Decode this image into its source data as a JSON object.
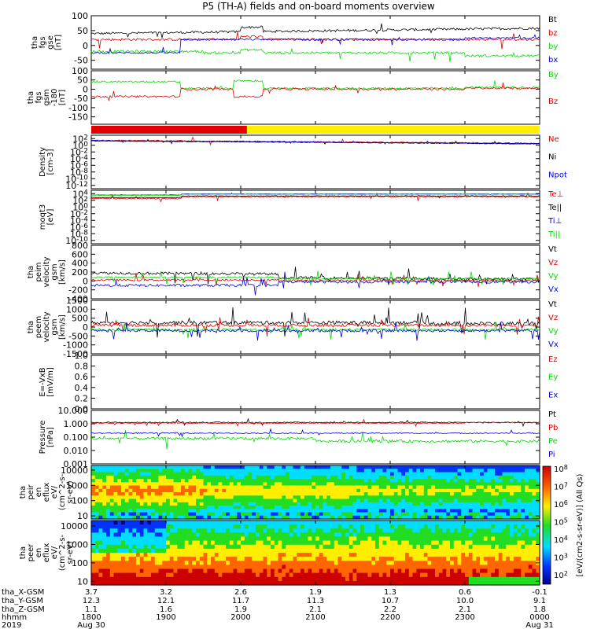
{
  "title": "P5 (TH-A) fields and on-board moments overview",
  "colors": {
    "black": "#000000",
    "red": "#e00000",
    "green": "#00dd00",
    "blue": "#0000e0",
    "yellow": "#ffee00"
  },
  "bottom_axis": {
    "labels": [
      "tha_X-GSM",
      "tha_Y-GSM",
      "tha_Z-GSM",
      "hhmm",
      "2019"
    ],
    "ticks": [
      {
        "x_gsm": "3.7",
        "y_gsm": "12.3",
        "z_gsm": "1.1",
        "hhmm": "1800",
        "date": "Aug 30"
      },
      {
        "x_gsm": "3.2",
        "y_gsm": "12.1",
        "z_gsm": "1.6",
        "hhmm": "1900",
        "date": ""
      },
      {
        "x_gsm": "2.6",
        "y_gsm": "11.7",
        "z_gsm": "1.9",
        "hhmm": "2000",
        "date": ""
      },
      {
        "x_gsm": "1.9",
        "y_gsm": "11.3",
        "z_gsm": "2.1",
        "hhmm": "2100",
        "date": ""
      },
      {
        "x_gsm": "1.3",
        "y_gsm": "10.7",
        "z_gsm": "2.2",
        "hhmm": "2200",
        "date": ""
      },
      {
        "x_gsm": "0.6",
        "y_gsm": "10.0",
        "z_gsm": "2.1",
        "hhmm": "2300",
        "date": ""
      },
      {
        "x_gsm": "-0.1",
        "y_gsm": "9.1",
        "z_gsm": "1.8",
        "hhmm": "0000",
        "date": "Aug 31"
      }
    ]
  },
  "colorbar": {
    "label": "[eV/(cm2-s-sr-eV)] (All Qs)",
    "ticks": [
      "10^8",
      "10^7",
      "10^6",
      "10^5",
      "10^4",
      "10^3",
      "10^2"
    ]
  },
  "chart_data": [
    {
      "type": "line",
      "id": "fgs",
      "ylabel": [
        "tha",
        "fgs",
        "gse",
        "[nT]"
      ],
      "ylim": [
        -80,
        100
      ],
      "yticks": [
        {
          "v": 100,
          "t": "100"
        },
        {
          "v": 50,
          "t": "50"
        },
        {
          "v": 0,
          "t": "0"
        },
        {
          "v": -50,
          "t": "-50"
        }
      ],
      "series": [
        {
          "name": "Bt",
          "color": "black"
        },
        {
          "name": "bz",
          "color": "red"
        },
        {
          "name": "by",
          "color": "green"
        },
        {
          "name": "bx",
          "color": "blue"
        }
      ]
    },
    {
      "type": "line",
      "id": "fgs_gsm",
      "ylabel": [
        "tha",
        "fgs",
        "gsm",
        "-180",
        "[nT]"
      ],
      "ylim": [
        -190,
        100
      ],
      "yticks": [
        {
          "v": 100,
          "t": "100"
        },
        {
          "v": 50,
          "t": "50"
        },
        {
          "v": 0,
          "t": "0"
        },
        {
          "v": -50,
          "t": "-50"
        },
        {
          "v": -100,
          "t": "-100"
        },
        {
          "v": -150,
          "t": "-150"
        }
      ],
      "series": [
        {
          "name": "By",
          "color": "green"
        },
        {
          "name": "Bz",
          "color": "red"
        }
      ]
    },
    {
      "type": "bar",
      "id": "mode_bar",
      "segments": [
        {
          "start": "1800",
          "end": "2005",
          "color": "red"
        },
        {
          "start": "2005",
          "end": "0000",
          "color": "yellow"
        }
      ]
    },
    {
      "type": "line",
      "id": "density",
      "ylabel": [
        "Density",
        "[cm-3]"
      ],
      "ylim": [
        -13,
        3
      ],
      "log": true,
      "yticks": [
        {
          "v": 2,
          "t": "10^2"
        },
        {
          "v": 0,
          "t": "10^0"
        },
        {
          "v": -2,
          "t": "10^-2"
        },
        {
          "v": -4,
          "t": "10^-4"
        },
        {
          "v": -6,
          "t": "10^-6"
        },
        {
          "v": -8,
          "t": "10^-8"
        },
        {
          "v": -10,
          "t": "10^-10"
        },
        {
          "v": -12,
          "t": "10^-12"
        }
      ],
      "series": [
        {
          "name": "Ne",
          "color": "red"
        },
        {
          "name": "Ni",
          "color": "black"
        },
        {
          "name": "Npot",
          "color": "blue"
        }
      ]
    },
    {
      "type": "line",
      "id": "temp",
      "ylabel": [
        "moqt3",
        "[eV]"
      ],
      "ylim": [
        -11,
        5
      ],
      "log": true,
      "yticks": [
        {
          "v": 4,
          "t": "10^4"
        },
        {
          "v": 2,
          "t": "10^2"
        },
        {
          "v": 0,
          "t": "10^0"
        },
        {
          "v": -2,
          "t": "10^-2"
        },
        {
          "v": -4,
          "t": "10^-4"
        },
        {
          "v": -6,
          "t": "10^-6"
        },
        {
          "v": -8,
          "t": "10^-8"
        },
        {
          "v": -10,
          "t": "10^-10"
        }
      ],
      "series": [
        {
          "name": "Te⊥",
          "color": "red"
        },
        {
          "name": "Te||",
          "color": "black"
        },
        {
          "name": "Ti⊥",
          "color": "blue"
        },
        {
          "name": "Ti||",
          "color": "green"
        }
      ]
    },
    {
      "type": "line",
      "id": "peim",
      "ylabel": [
        "tha",
        "peim",
        "velocity",
        "gsm",
        "[km/s]"
      ],
      "ylim": [
        -400,
        800
      ],
      "yticks": [
        {
          "v": 800,
          "t": "800"
        },
        {
          "v": 600,
          "t": "600"
        },
        {
          "v": 400,
          "t": "400"
        },
        {
          "v": 200,
          "t": "200"
        },
        {
          "v": 0,
          "t": "0"
        },
        {
          "v": -200,
          "t": "-200"
        },
        {
          "v": -400,
          "t": "-400"
        }
      ],
      "series": [
        {
          "name": "Vt",
          "color": "black"
        },
        {
          "name": "Vz",
          "color": "red"
        },
        {
          "name": "Vy",
          "color": "green"
        },
        {
          "name": "Vx",
          "color": "blue"
        }
      ]
    },
    {
      "type": "line",
      "id": "peem",
      "ylabel": [
        "tha",
        "peem",
        "velocity",
        "gsm",
        "[km/s]"
      ],
      "ylim": [
        -1500,
        1500
      ],
      "yticks": [
        {
          "v": 1500,
          "t": "1500"
        },
        {
          "v": 1000,
          "t": "1000"
        },
        {
          "v": 500,
          "t": "500"
        },
        {
          "v": 0,
          "t": "0"
        },
        {
          "v": -500,
          "t": "-500"
        },
        {
          "v": -1000,
          "t": "-1000"
        },
        {
          "v": -1500,
          "t": "-1500"
        }
      ],
      "series": [
        {
          "name": "Vt",
          "color": "black"
        },
        {
          "name": "Vz",
          "color": "red"
        },
        {
          "name": "Vy",
          "color": "green"
        },
        {
          "name": "Vx",
          "color": "blue"
        }
      ]
    },
    {
      "type": "line",
      "id": "efield",
      "ylabel": [
        "E=-VxB",
        "[mV/m]"
      ],
      "ylim": [
        0,
        1
      ],
      "yticks": [
        {
          "v": 1.0,
          "t": "1.0"
        },
        {
          "v": 0.8,
          "t": "0.8"
        },
        {
          "v": 0.6,
          "t": "0.6"
        },
        {
          "v": 0.4,
          "t": "0.4"
        },
        {
          "v": 0.2,
          "t": "0.2"
        },
        {
          "v": 0.0,
          "t": "0.0"
        }
      ],
      "series": [
        {
          "name": "Ez",
          "color": "red"
        },
        {
          "name": "Ey",
          "color": "green"
        },
        {
          "name": "Ex",
          "color": "blue"
        }
      ]
    },
    {
      "type": "line",
      "id": "pressure",
      "ylabel": [
        "Pressure",
        "[nPa]"
      ],
      "ylim": [
        -3,
        1
      ],
      "log": true,
      "yticks": [
        {
          "v": 1,
          "t": "10.000"
        },
        {
          "v": 0,
          "t": "1.000"
        },
        {
          "v": -1,
          "t": "0.100"
        },
        {
          "v": -2,
          "t": "0.010"
        },
        {
          "v": -3,
          "t": "0.001"
        }
      ],
      "series": [
        {
          "name": "Pt",
          "color": "black"
        },
        {
          "name": "Pb",
          "color": "red"
        },
        {
          "name": "Pe",
          "color": "green"
        },
        {
          "name": "Pi",
          "color": "blue"
        }
      ]
    },
    {
      "type": "heatmap",
      "id": "peir",
      "ylabel": [
        "tha",
        "peir",
        "en",
        "eflux",
        "eV/",
        "(cm^2-s-",
        "sr-eV)"
      ],
      "ylim": [
        0.8,
        4.3
      ],
      "log": true,
      "yticks": [
        {
          "v": 4,
          "t": "10000"
        },
        {
          "v": 3,
          "t": "1000"
        },
        {
          "v": 2,
          "t": "100"
        },
        {
          "v": 1,
          "t": "10"
        }
      ]
    },
    {
      "type": "heatmap",
      "id": "peer",
      "ylabel": [
        "tha",
        "peer",
        "en",
        "eflux",
        "eV/",
        "(cm^2-s-",
        "sr-eV)"
      ],
      "ylim": [
        0.8,
        4.3
      ],
      "log": true,
      "yticks": [
        {
          "v": 4,
          "t": "10000"
        },
        {
          "v": 3,
          "t": "1000"
        },
        {
          "v": 2,
          "t": "100"
        },
        {
          "v": 1,
          "t": "10"
        }
      ]
    }
  ]
}
